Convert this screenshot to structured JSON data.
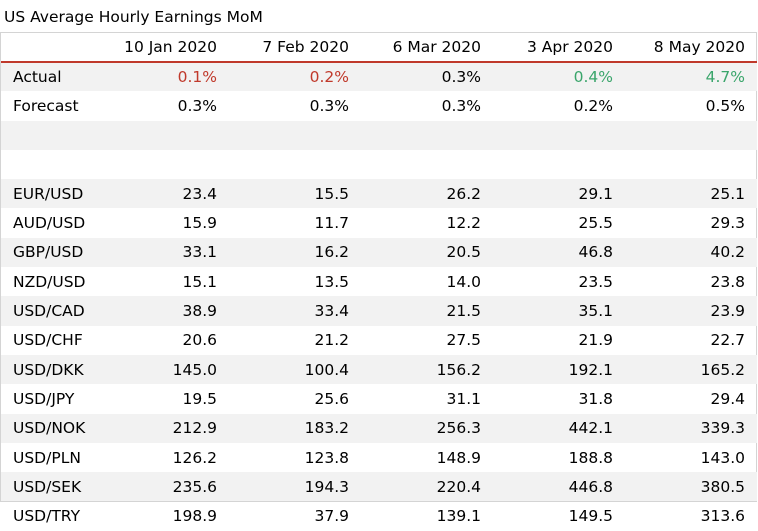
{
  "title": "US Average Hourly Earnings MoM",
  "columns": [
    "10 Jan 2020",
    "7 Feb 2020",
    "6 Mar 2020",
    "3 Apr 2020",
    "8 May 2020"
  ],
  "colors": {
    "negative": "#c0392b",
    "positive": "#3aa56b",
    "header_rule": "#c0392b"
  },
  "rows": [
    {
      "label": "Actual",
      "values": [
        "0.1%",
        "0.2%",
        "0.3%",
        "0.4%",
        "4.7%"
      ],
      "tones": [
        "red",
        "red",
        "",
        "green",
        "green"
      ]
    },
    {
      "label": "Forecast",
      "values": [
        "0.3%",
        "0.3%",
        "0.3%",
        "0.2%",
        "0.5%"
      ],
      "tones": [
        "",
        "",
        "",
        "",
        ""
      ]
    },
    {
      "label": "",
      "values": [
        "",
        "",
        "",
        "",
        ""
      ],
      "tones": [
        "",
        "",
        "",
        "",
        ""
      ]
    },
    {
      "label": "",
      "values": [
        "",
        "",
        "",
        "",
        ""
      ],
      "tones": [
        "",
        "",
        "",
        "",
        ""
      ]
    },
    {
      "label": "EUR/USD",
      "values": [
        "23.4",
        "15.5",
        "26.2",
        "29.1",
        "25.1"
      ],
      "tones": [
        "",
        "",
        "",
        "",
        ""
      ]
    },
    {
      "label": "AUD/USD",
      "values": [
        "15.9",
        "11.7",
        "12.2",
        "25.5",
        "29.3"
      ],
      "tones": [
        "",
        "",
        "",
        "",
        ""
      ]
    },
    {
      "label": "GBP/USD",
      "values": [
        "33.1",
        "16.2",
        "20.5",
        "46.8",
        "40.2"
      ],
      "tones": [
        "",
        "",
        "",
        "",
        ""
      ]
    },
    {
      "label": "NZD/USD",
      "values": [
        "15.1",
        "13.5",
        "14.0",
        "23.5",
        "23.8"
      ],
      "tones": [
        "",
        "",
        "",
        "",
        ""
      ]
    },
    {
      "label": "USD/CAD",
      "values": [
        "38.9",
        "33.4",
        "21.5",
        "35.1",
        "23.9"
      ],
      "tones": [
        "",
        "",
        "",
        "",
        ""
      ]
    },
    {
      "label": "USD/CHF",
      "values": [
        "20.6",
        "21.2",
        "27.5",
        "21.9",
        "22.7"
      ],
      "tones": [
        "",
        "",
        "",
        "",
        ""
      ]
    },
    {
      "label": "USD/DKK",
      "values": [
        "145.0",
        "100.4",
        "156.2",
        "192.1",
        "165.2"
      ],
      "tones": [
        "",
        "",
        "",
        "",
        ""
      ]
    },
    {
      "label": "USD/JPY",
      "values": [
        "19.5",
        "25.6",
        "31.1",
        "31.8",
        "29.4"
      ],
      "tones": [
        "",
        "",
        "",
        "",
        ""
      ]
    },
    {
      "label": "USD/NOK",
      "values": [
        "212.9",
        "183.2",
        "256.3",
        "442.1",
        "339.3"
      ],
      "tones": [
        "",
        "",
        "",
        "",
        ""
      ]
    },
    {
      "label": "USD/PLN",
      "values": [
        "126.2",
        "123.8",
        "148.9",
        "188.8",
        "143.0"
      ],
      "tones": [
        "",
        "",
        "",
        "",
        ""
      ]
    },
    {
      "label": "USD/SEK",
      "values": [
        "235.6",
        "194.3",
        "220.4",
        "446.8",
        "380.5"
      ],
      "tones": [
        "",
        "",
        "",
        "",
        ""
      ]
    },
    {
      "label": "USD/TRY",
      "values": [
        "198.9",
        "37.9",
        "139.1",
        "149.5",
        "313.6"
      ],
      "tones": [
        "",
        "",
        "",
        "",
        ""
      ]
    }
  ]
}
